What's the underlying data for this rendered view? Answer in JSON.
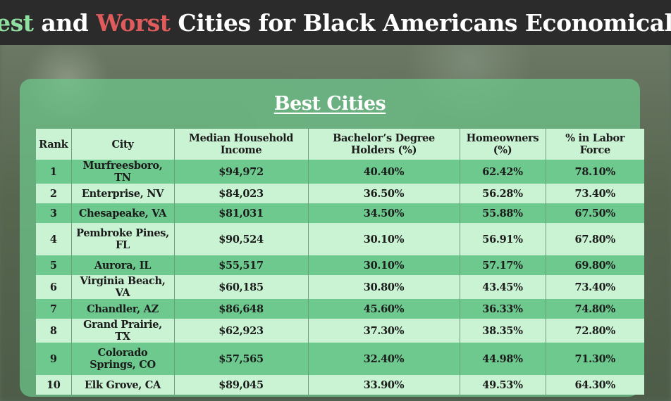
{
  "header": {
    "title_part1": "Best",
    "title_part2": " and ",
    "title_part3": "Worst",
    "title_part4": " Cities for Black Americans Economically",
    "colors": {
      "best": "#8fe0a0",
      "worst": "#e05b5b",
      "text": "#ffffff"
    }
  },
  "panel": {
    "title": "Best Cities"
  },
  "table": {
    "columns": {
      "rank": "Rank",
      "city": "City",
      "income": "Median Household Income",
      "bachelors": "Bachelor’s Degree Holders (%)",
      "homeowners": "Homeowners (%)",
      "labor": "% in Labor Force"
    },
    "rows": [
      {
        "rank": "1",
        "city": "Murfreesboro, TN",
        "income": "$94,972",
        "bachelors": "40.40%",
        "homeowners": "62.42%",
        "labor": "78.10%"
      },
      {
        "rank": "2",
        "city": "Enterprise, NV",
        "income": "$84,023",
        "bachelors": "36.50%",
        "homeowners": "56.28%",
        "labor": "73.40%"
      },
      {
        "rank": "3",
        "city": "Chesapeake, VA",
        "income": "$81,031",
        "bachelors": "34.50%",
        "homeowners": "55.88%",
        "labor": "67.50%"
      },
      {
        "rank": "4",
        "city": "Pembroke Pines, FL",
        "income": "$90,524",
        "bachelors": "30.10%",
        "homeowners": "56.91%",
        "labor": "67.80%"
      },
      {
        "rank": "5",
        "city": "Aurora, IL",
        "income": "$55,517",
        "bachelors": "30.10%",
        "homeowners": "57.17%",
        "labor": "69.80%"
      },
      {
        "rank": "6",
        "city": "Virginia Beach, VA",
        "income": "$60,185",
        "bachelors": "30.80%",
        "homeowners": "43.45%",
        "labor": "73.40%"
      },
      {
        "rank": "7",
        "city": "Chandler, AZ",
        "income": "$86,648",
        "bachelors": "45.60%",
        "homeowners": "36.33%",
        "labor": "74.80%"
      },
      {
        "rank": "8",
        "city": "Grand Prairie, TX",
        "income": "$62,923",
        "bachelors": "37.30%",
        "homeowners": "38.35%",
        "labor": "72.80%"
      },
      {
        "rank": "9",
        "city": "Colorado Springs, CO",
        "income": "$57,565",
        "bachelors": "32.40%",
        "homeowners": "44.98%",
        "labor": "71.30%"
      },
      {
        "rank": "10",
        "city": "Elk Grove, CA",
        "income": "$89,045",
        "bachelors": "33.90%",
        "homeowners": "49.53%",
        "labor": "64.30%"
      }
    ]
  }
}
